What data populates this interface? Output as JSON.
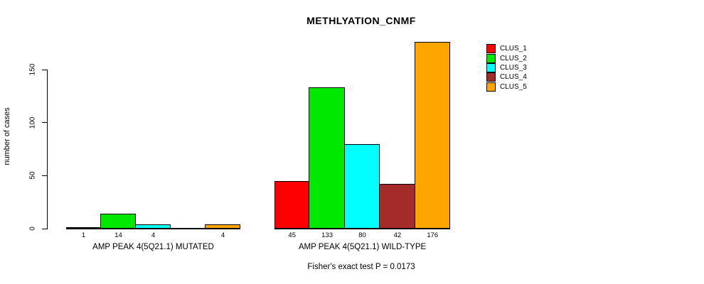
{
  "chart_data": {
    "type": "bar",
    "title": "METHLYATION_CNMF",
    "ylabel": "number of cases",
    "yticks": [
      0,
      50,
      100,
      150
    ],
    "ylim": [
      0,
      180
    ],
    "grid": false,
    "legend_position": "right",
    "bar_border_color": "#000000",
    "series": [
      {
        "name": "CLUS_1",
        "color": "#FF0000",
        "values": [
          1,
          45
        ]
      },
      {
        "name": "CLUS_2",
        "color": "#00E800",
        "values": [
          14,
          133
        ]
      },
      {
        "name": "CLUS_3",
        "color": "#00FFFF",
        "values": [
          4,
          80
        ]
      },
      {
        "name": "CLUS_4",
        "color": "#A52A2A",
        "values": [
          0,
          42
        ]
      },
      {
        "name": "CLUS_5",
        "color": "#FFA500",
        "values": [
          4,
          176
        ]
      }
    ],
    "categories": [
      "AMP PEAK 4(5Q21.1) MUTATED",
      "AMP PEAK 4(5Q21.1) WILD-TYPE"
    ],
    "groups": [
      {
        "label": "AMP PEAK 4(5Q21.1) MUTATED",
        "values": [
          1,
          14,
          4,
          0,
          4
        ],
        "value_labels": [
          "1",
          "14",
          "4",
          "",
          "4"
        ]
      },
      {
        "label": "AMP PEAK 4(5Q21.1) WILD-TYPE",
        "values": [
          45,
          133,
          80,
          42,
          176
        ],
        "value_labels": [
          "45",
          "133",
          "80",
          "42",
          "176"
        ]
      }
    ],
    "annotation": "Fisher's exact test P = 0.0173"
  }
}
